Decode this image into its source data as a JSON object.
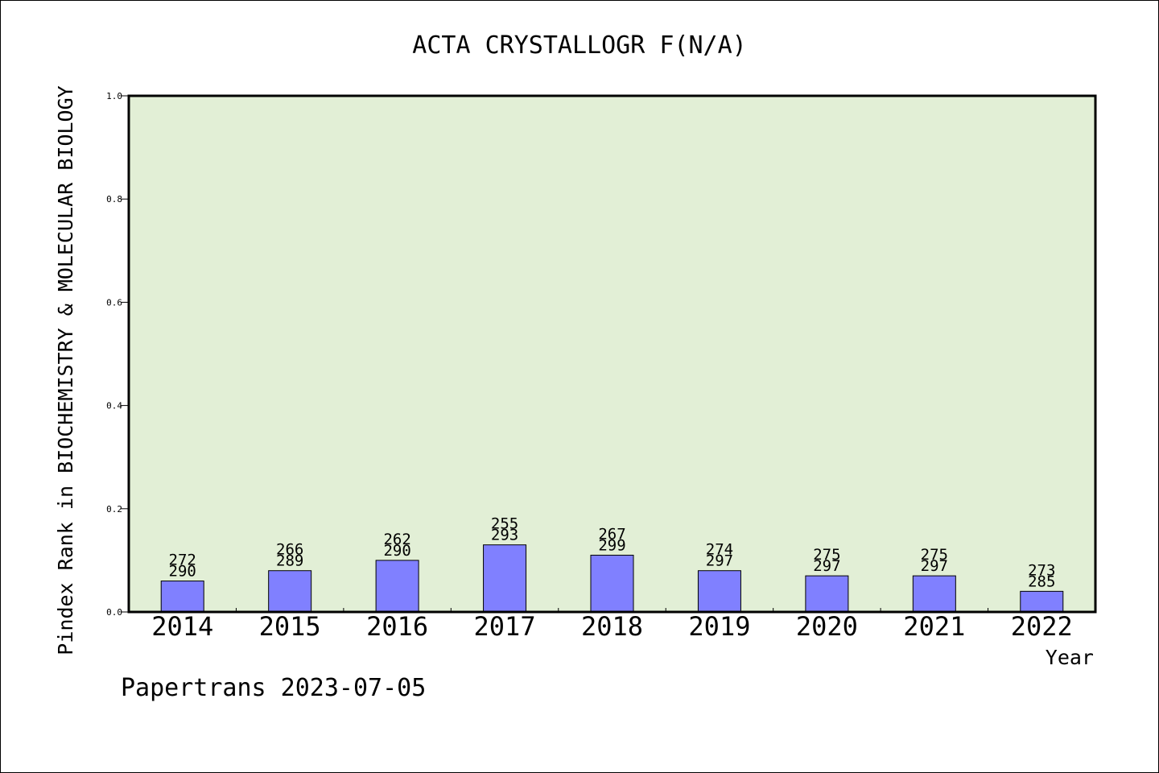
{
  "chart_data": {
    "type": "bar",
    "title": "ACTA CRYSTALLOGR F(N/A)",
    "xlabel": "Year",
    "ylabel": "Pindex Rank in BIOCHEMISTRY & MOLECULAR BIOLOGY",
    "ylim": [
      0.0,
      1.0
    ],
    "yticks": [
      "0.0",
      "0.2",
      "0.4",
      "0.6",
      "0.8",
      "1.0"
    ],
    "categories": [
      "2014",
      "2015",
      "2016",
      "2017",
      "2018",
      "2019",
      "2020",
      "2021",
      "2022"
    ],
    "values": [
      0.06,
      0.08,
      0.1,
      0.13,
      0.11,
      0.08,
      0.07,
      0.07,
      0.04
    ],
    "rank_labels": [
      "272",
      "266",
      "262",
      "255",
      "267",
      "274",
      "275",
      "275",
      "273"
    ],
    "total_labels": [
      "290",
      "289",
      "290",
      "293",
      "299",
      "297",
      "297",
      "297",
      "285"
    ],
    "grid": false,
    "legend": "none",
    "colors": {
      "plot_background": "#e2efd6",
      "bar_fill": "#8080ff",
      "bar_stroke": "#000000"
    }
  },
  "footer": {
    "credit": "Papertrans 2023-07-05"
  }
}
